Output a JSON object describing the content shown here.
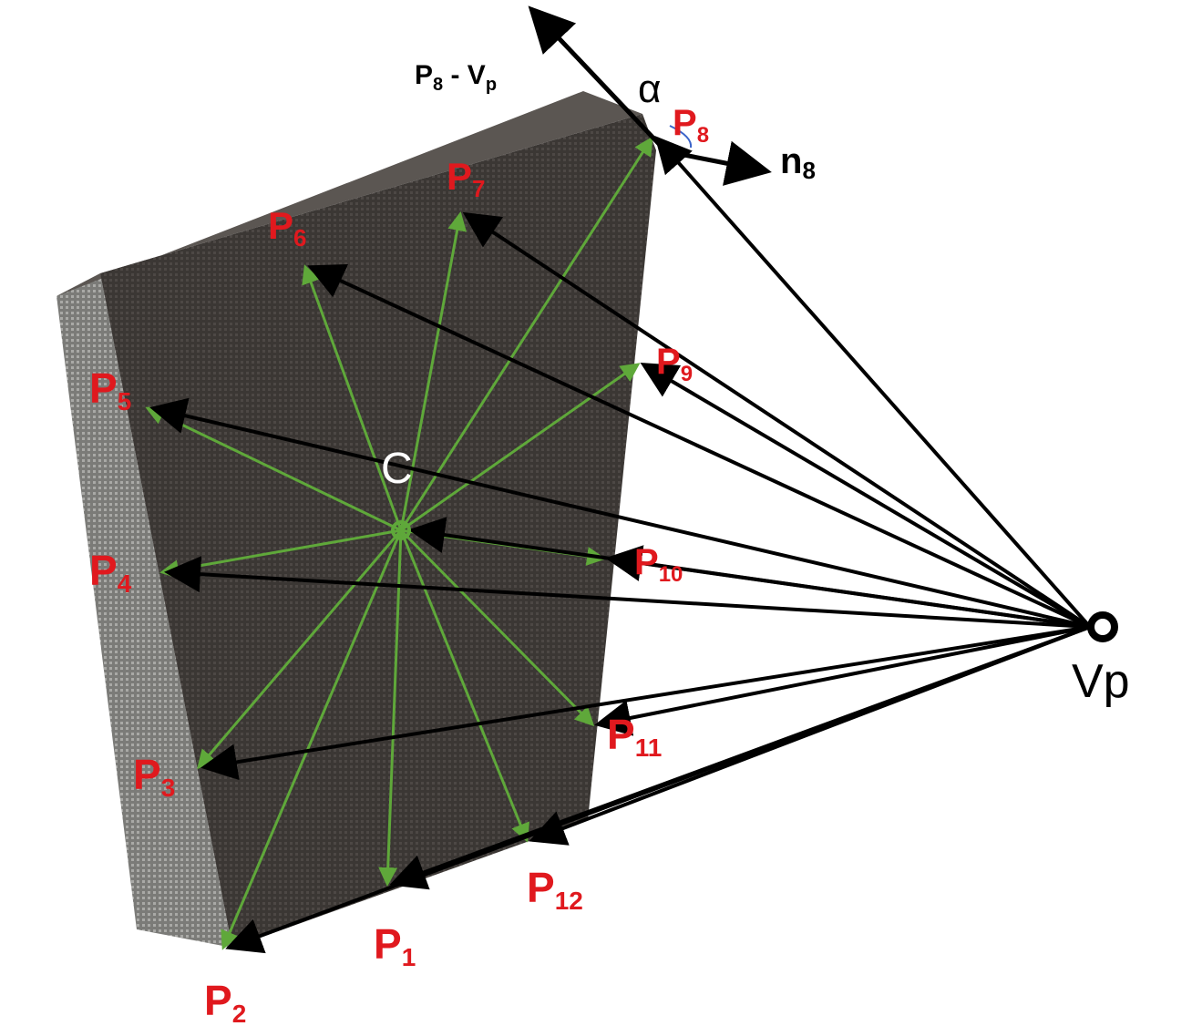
{
  "colors": {
    "green_vector": "#5fa83a",
    "black_vector": "#000000",
    "label_red": "#e0191e",
    "panel_front": "#3e3a37",
    "panel_side": "#8f8f8c"
  },
  "labels": {
    "p1": {
      "main": "P",
      "sub": "1"
    },
    "p2": {
      "main": "P",
      "sub": "2"
    },
    "p3": {
      "main": "P",
      "sub": "3"
    },
    "p4": {
      "main": "P",
      "sub": "4"
    },
    "p5": {
      "main": "P",
      "sub": "5"
    },
    "p6": {
      "main": "P",
      "sub": "6"
    },
    "p7": {
      "main": "P",
      "sub": "7"
    },
    "p8": {
      "main": "P",
      "sub": "8"
    },
    "p9": {
      "main": "P",
      "sub": "9"
    },
    "p10": {
      "main": "P",
      "sub": "10"
    },
    "p11": {
      "main": "P",
      "sub": "11"
    },
    "p12": {
      "main": "P",
      "sub": "12"
    },
    "center": "C",
    "viewpoint": "Vp",
    "alpha": "α",
    "normal": {
      "main": "n",
      "sub": "8"
    },
    "difference": {
      "p": "P",
      "p_sub": "8",
      "minus": " - V",
      "v_sub": "p"
    }
  }
}
